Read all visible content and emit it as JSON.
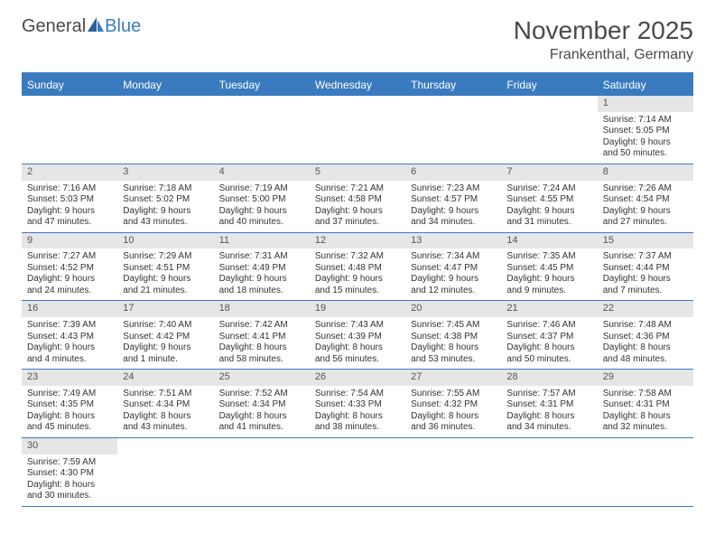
{
  "logo": {
    "text1": "General",
    "text2": "Blue"
  },
  "title": "November 2025",
  "location": "Frankenthal, Germany",
  "colors": {
    "accent": "#3a7bbf",
    "grayBg": "#e6e6e6",
    "text": "#4a4a4a"
  },
  "dayNames": [
    "Sunday",
    "Monday",
    "Tuesday",
    "Wednesday",
    "Thursday",
    "Friday",
    "Saturday"
  ],
  "weeks": [
    [
      null,
      null,
      null,
      null,
      null,
      null,
      {
        "n": "1",
        "sunrise": "7:14 AM",
        "sunset": "5:05 PM",
        "daylight": "9 hours and 50 minutes."
      }
    ],
    [
      {
        "n": "2",
        "sunrise": "7:16 AM",
        "sunset": "5:03 PM",
        "daylight": "9 hours and 47 minutes."
      },
      {
        "n": "3",
        "sunrise": "7:18 AM",
        "sunset": "5:02 PM",
        "daylight": "9 hours and 43 minutes."
      },
      {
        "n": "4",
        "sunrise": "7:19 AM",
        "sunset": "5:00 PM",
        "daylight": "9 hours and 40 minutes."
      },
      {
        "n": "5",
        "sunrise": "7:21 AM",
        "sunset": "4:58 PM",
        "daylight": "9 hours and 37 minutes."
      },
      {
        "n": "6",
        "sunrise": "7:23 AM",
        "sunset": "4:57 PM",
        "daylight": "9 hours and 34 minutes."
      },
      {
        "n": "7",
        "sunrise": "7:24 AM",
        "sunset": "4:55 PM",
        "daylight": "9 hours and 31 minutes."
      },
      {
        "n": "8",
        "sunrise": "7:26 AM",
        "sunset": "4:54 PM",
        "daylight": "9 hours and 27 minutes."
      }
    ],
    [
      {
        "n": "9",
        "sunrise": "7:27 AM",
        "sunset": "4:52 PM",
        "daylight": "9 hours and 24 minutes."
      },
      {
        "n": "10",
        "sunrise": "7:29 AM",
        "sunset": "4:51 PM",
        "daylight": "9 hours and 21 minutes."
      },
      {
        "n": "11",
        "sunrise": "7:31 AM",
        "sunset": "4:49 PM",
        "daylight": "9 hours and 18 minutes."
      },
      {
        "n": "12",
        "sunrise": "7:32 AM",
        "sunset": "4:48 PM",
        "daylight": "9 hours and 15 minutes."
      },
      {
        "n": "13",
        "sunrise": "7:34 AM",
        "sunset": "4:47 PM",
        "daylight": "9 hours and 12 minutes."
      },
      {
        "n": "14",
        "sunrise": "7:35 AM",
        "sunset": "4:45 PM",
        "daylight": "9 hours and 9 minutes."
      },
      {
        "n": "15",
        "sunrise": "7:37 AM",
        "sunset": "4:44 PM",
        "daylight": "9 hours and 7 minutes."
      }
    ],
    [
      {
        "n": "16",
        "sunrise": "7:39 AM",
        "sunset": "4:43 PM",
        "daylight": "9 hours and 4 minutes."
      },
      {
        "n": "17",
        "sunrise": "7:40 AM",
        "sunset": "4:42 PM",
        "daylight": "9 hours and 1 minute."
      },
      {
        "n": "18",
        "sunrise": "7:42 AM",
        "sunset": "4:41 PM",
        "daylight": "8 hours and 58 minutes."
      },
      {
        "n": "19",
        "sunrise": "7:43 AM",
        "sunset": "4:39 PM",
        "daylight": "8 hours and 56 minutes."
      },
      {
        "n": "20",
        "sunrise": "7:45 AM",
        "sunset": "4:38 PM",
        "daylight": "8 hours and 53 minutes."
      },
      {
        "n": "21",
        "sunrise": "7:46 AM",
        "sunset": "4:37 PM",
        "daylight": "8 hours and 50 minutes."
      },
      {
        "n": "22",
        "sunrise": "7:48 AM",
        "sunset": "4:36 PM",
        "daylight": "8 hours and 48 minutes."
      }
    ],
    [
      {
        "n": "23",
        "sunrise": "7:49 AM",
        "sunset": "4:35 PM",
        "daylight": "8 hours and 45 minutes."
      },
      {
        "n": "24",
        "sunrise": "7:51 AM",
        "sunset": "4:34 PM",
        "daylight": "8 hours and 43 minutes."
      },
      {
        "n": "25",
        "sunrise": "7:52 AM",
        "sunset": "4:34 PM",
        "daylight": "8 hours and 41 minutes."
      },
      {
        "n": "26",
        "sunrise": "7:54 AM",
        "sunset": "4:33 PM",
        "daylight": "8 hours and 38 minutes."
      },
      {
        "n": "27",
        "sunrise": "7:55 AM",
        "sunset": "4:32 PM",
        "daylight": "8 hours and 36 minutes."
      },
      {
        "n": "28",
        "sunrise": "7:57 AM",
        "sunset": "4:31 PM",
        "daylight": "8 hours and 34 minutes."
      },
      {
        "n": "29",
        "sunrise": "7:58 AM",
        "sunset": "4:31 PM",
        "daylight": "8 hours and 32 minutes."
      }
    ],
    [
      {
        "n": "30",
        "sunrise": "7:59 AM",
        "sunset": "4:30 PM",
        "daylight": "8 hours and 30 minutes."
      },
      null,
      null,
      null,
      null,
      null,
      null
    ]
  ],
  "labels": {
    "sunrise": "Sunrise: ",
    "sunset": "Sunset: ",
    "daylight": "Daylight: "
  }
}
